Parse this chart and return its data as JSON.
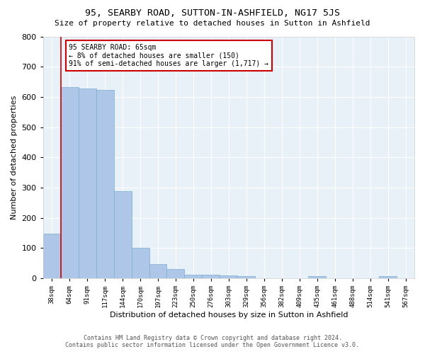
{
  "title": "95, SEARBY ROAD, SUTTON-IN-ASHFIELD, NG17 5JS",
  "subtitle": "Size of property relative to detached houses in Sutton in Ashfield",
  "xlabel": "Distribution of detached houses by size in Sutton in Ashfield",
  "ylabel": "Number of detached properties",
  "categories": [
    "38sqm",
    "64sqm",
    "91sqm",
    "117sqm",
    "144sqm",
    "170sqm",
    "197sqm",
    "223sqm",
    "250sqm",
    "276sqm",
    "303sqm",
    "329sqm",
    "356sqm",
    "382sqm",
    "409sqm",
    "435sqm",
    "461sqm",
    "488sqm",
    "514sqm",
    "541sqm",
    "567sqm"
  ],
  "values": [
    148,
    632,
    628,
    623,
    288,
    100,
    48,
    30,
    12,
    12,
    10,
    8,
    0,
    0,
    0,
    7,
    0,
    0,
    0,
    8,
    0
  ],
  "bar_color": "#aec6e8",
  "bar_edge_color": "#7aaed0",
  "ylim": [
    0,
    800
  ],
  "yticks": [
    0,
    100,
    200,
    300,
    400,
    500,
    600,
    700,
    800
  ],
  "annotation_text_line1": "95 SEARBY ROAD: 65sqm",
  "annotation_text_line2": "← 8% of detached houses are smaller (150)",
  "annotation_text_line3": "91% of semi-detached houses are larger (1,717) →",
  "marker_line_color": "#cc0000",
  "bg_color": "#e8f0f8",
  "footer_line1": "Contains HM Land Registry data © Crown copyright and database right 2024.",
  "footer_line2": "Contains public sector information licensed under the Open Government Licence v3.0."
}
